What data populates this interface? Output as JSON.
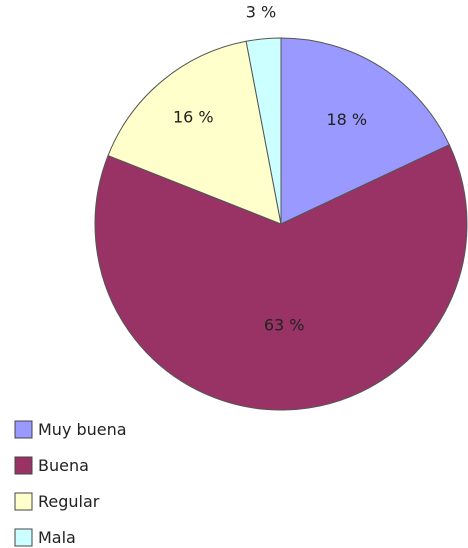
{
  "chart_data": {
    "type": "pie",
    "categories": [
      "Muy buena",
      "Buena",
      "Regular",
      "Mala"
    ],
    "values": [
      18,
      63,
      16,
      3
    ],
    "data_labels": [
      "18 %",
      "63 %",
      "16 %",
      "3 %"
    ],
    "colors": [
      "#9999ff",
      "#993366",
      "#ffffcc",
      "#ccffff"
    ],
    "start_angle_deg": 0,
    "direction": "clockwise",
    "legend": {
      "position": "bottom-left",
      "entries": [
        "Muy buena",
        "Buena",
        "Regular",
        "Mala"
      ]
    }
  }
}
